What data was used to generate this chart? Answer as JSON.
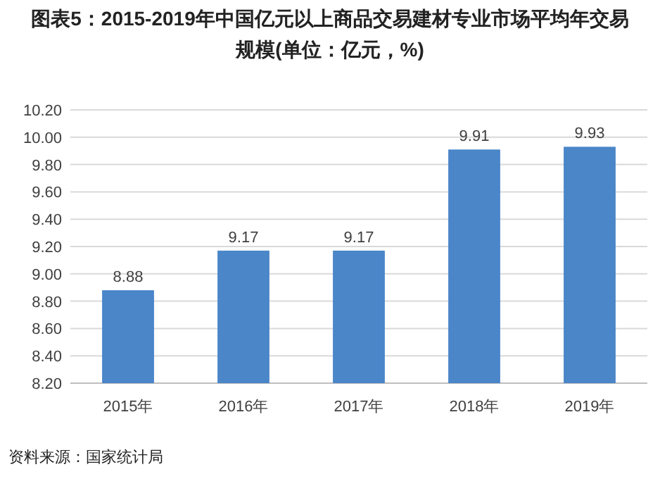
{
  "chart_data": {
    "type": "bar",
    "title": "图表5：2015-2019年中国亿元以上商品交易建材专业市场平均年交易规模(单位：亿元，%)",
    "categories": [
      "2015年",
      "2016年",
      "2017年",
      "2018年",
      "2019年"
    ],
    "values": [
      8.88,
      9.17,
      9.17,
      9.91,
      9.93
    ],
    "color": "#4a86c8",
    "ylim": [
      8.2,
      10.2
    ],
    "yticks": [
      {
        "value": 8.2,
        "label": "8.20"
      },
      {
        "value": 8.4,
        "label": "8.40"
      },
      {
        "value": 8.6,
        "label": "8.60"
      },
      {
        "value": 8.8,
        "label": "8.80"
      },
      {
        "value": 9.0,
        "label": "9.00"
      },
      {
        "value": 9.2,
        "label": "9.20"
      },
      {
        "value": 9.4,
        "label": "9.40"
      },
      {
        "value": 9.6,
        "label": "9.60"
      },
      {
        "value": 9.8,
        "label": "9.80"
      },
      {
        "value": 10.0,
        "label": "10.00"
      },
      {
        "value": 10.2,
        "label": "10.20"
      }
    ],
    "grid": "y",
    "data_labels": true,
    "annotations": [
      "资料来源：国家统计局"
    ]
  }
}
